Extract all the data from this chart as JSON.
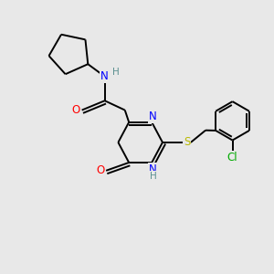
{
  "background_color": "#e8e8e8",
  "atom_colors": {
    "C": "#000000",
    "N": "#0000ff",
    "O": "#ff0000",
    "S": "#b8b800",
    "Cl": "#00aa00",
    "H": "#5a9090"
  },
  "bond_color": "#000000",
  "bond_width": 1.4,
  "figsize": [
    3.0,
    3.0
  ],
  "dpi": 100
}
